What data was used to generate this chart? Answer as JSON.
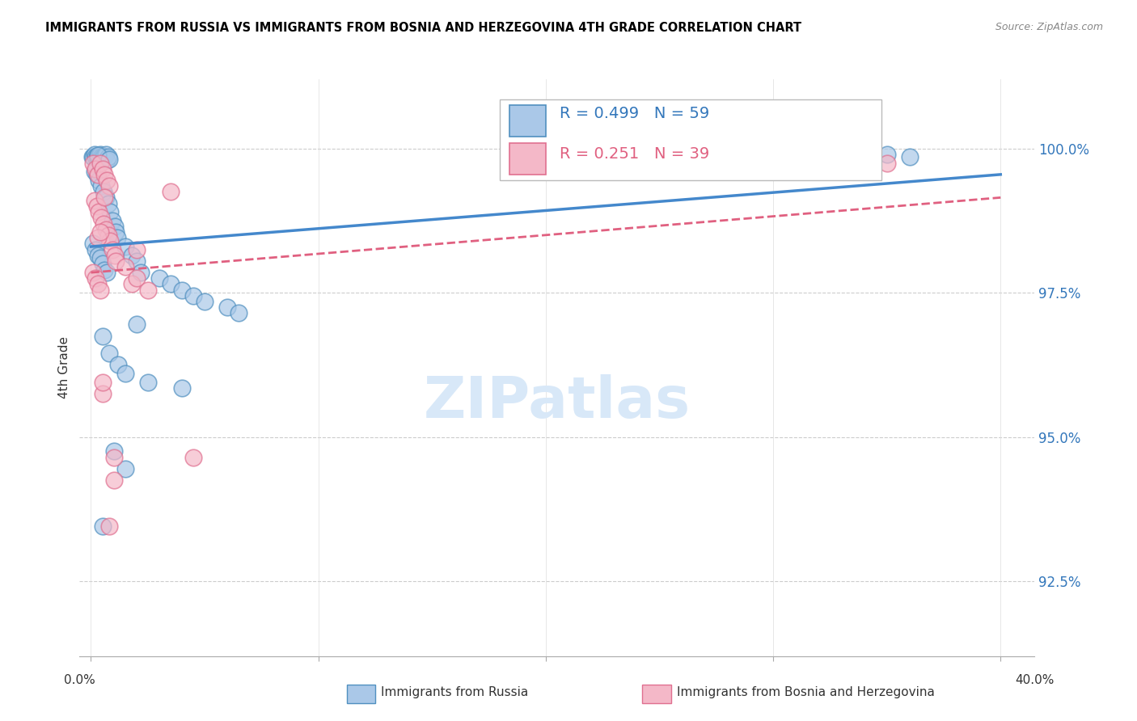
{
  "title": "IMMIGRANTS FROM RUSSIA VS IMMIGRANTS FROM BOSNIA AND HERZEGOVINA 4TH GRADE CORRELATION CHART",
  "source": "Source: ZipAtlas.com",
  "ylabel": "4th Grade",
  "ymin": 91.2,
  "ymax": 101.2,
  "xmin": -0.5,
  "xmax": 41.5,
  "legend_blue_label": "Immigrants from Russia",
  "legend_pink_label": "Immigrants from Bosnia and Herzegovina",
  "R_blue": 0.499,
  "N_blue": 59,
  "R_pink": 0.251,
  "N_pink": 39,
  "blue_fill": "#aac8e8",
  "pink_fill": "#f4b8c8",
  "blue_edge": "#5090c0",
  "pink_edge": "#e07090",
  "blue_line": "#4488cc",
  "pink_line": "#e06080",
  "background_color": "#ffffff",
  "watermark_text": "ZIPatlas",
  "watermark_color": "#d8e8f8",
  "blue_scatter": [
    [
      0.05,
      99.85
    ],
    [
      0.1,
      99.85
    ],
    [
      0.15,
      99.9
    ],
    [
      0.2,
      99.85
    ],
    [
      0.25,
      99.85
    ],
    [
      0.3,
      99.85
    ],
    [
      0.35,
      99.85
    ],
    [
      0.4,
      99.9
    ],
    [
      0.45,
      99.85
    ],
    [
      0.5,
      99.85
    ],
    [
      0.55,
      99.85
    ],
    [
      0.6,
      99.85
    ],
    [
      0.65,
      99.9
    ],
    [
      0.7,
      99.8
    ],
    [
      0.75,
      99.85
    ],
    [
      0.15,
      99.6
    ],
    [
      0.25,
      99.55
    ],
    [
      0.35,
      99.45
    ],
    [
      0.45,
      99.35
    ],
    [
      0.55,
      99.25
    ],
    [
      0.65,
      99.15
    ],
    [
      0.75,
      99.05
    ],
    [
      0.85,
      98.9
    ],
    [
      0.95,
      98.75
    ],
    [
      1.05,
      98.65
    ],
    [
      1.1,
      98.55
    ],
    [
      1.15,
      98.45
    ],
    [
      0.1,
      98.35
    ],
    [
      0.2,
      98.25
    ],
    [
      0.3,
      98.15
    ],
    [
      0.4,
      98.1
    ],
    [
      0.5,
      98.0
    ],
    [
      0.6,
      97.9
    ],
    [
      0.7,
      97.85
    ],
    [
      1.5,
      98.3
    ],
    [
      1.8,
      98.15
    ],
    [
      2.0,
      98.05
    ],
    [
      2.2,
      97.85
    ],
    [
      3.0,
      97.75
    ],
    [
      3.5,
      97.65
    ],
    [
      4.0,
      97.55
    ],
    [
      4.5,
      97.45
    ],
    [
      5.0,
      97.35
    ],
    [
      6.0,
      97.25
    ],
    [
      6.5,
      97.15
    ],
    [
      2.0,
      96.95
    ],
    [
      0.5,
      96.75
    ],
    [
      0.8,
      96.45
    ],
    [
      1.2,
      96.25
    ],
    [
      1.5,
      96.1
    ],
    [
      2.5,
      95.95
    ],
    [
      4.0,
      95.85
    ],
    [
      1.0,
      94.75
    ],
    [
      1.5,
      94.45
    ],
    [
      0.5,
      93.45
    ],
    [
      35.0,
      99.9
    ],
    [
      36.0,
      99.85
    ],
    [
      0.3,
      99.88
    ],
    [
      0.8,
      99.82
    ]
  ],
  "pink_scatter": [
    [
      0.1,
      99.75
    ],
    [
      0.2,
      99.65
    ],
    [
      0.3,
      99.55
    ],
    [
      0.4,
      99.75
    ],
    [
      0.5,
      99.65
    ],
    [
      0.6,
      99.55
    ],
    [
      0.7,
      99.45
    ],
    [
      0.8,
      99.35
    ],
    [
      0.15,
      99.1
    ],
    [
      0.25,
      99.0
    ],
    [
      0.35,
      98.9
    ],
    [
      0.45,
      98.8
    ],
    [
      0.55,
      98.7
    ],
    [
      0.65,
      98.6
    ],
    [
      0.75,
      98.5
    ],
    [
      0.85,
      98.4
    ],
    [
      0.95,
      98.25
    ],
    [
      1.05,
      98.15
    ],
    [
      1.1,
      98.05
    ],
    [
      1.5,
      97.95
    ],
    [
      0.1,
      97.85
    ],
    [
      0.2,
      97.75
    ],
    [
      0.3,
      97.65
    ],
    [
      0.4,
      97.55
    ],
    [
      1.8,
      97.65
    ],
    [
      2.0,
      97.75
    ],
    [
      2.5,
      97.55
    ],
    [
      3.5,
      99.25
    ],
    [
      1.0,
      94.65
    ],
    [
      1.0,
      94.25
    ],
    [
      4.5,
      94.65
    ],
    [
      0.8,
      93.45
    ],
    [
      0.5,
      95.75
    ],
    [
      0.5,
      95.95
    ],
    [
      2.0,
      98.25
    ],
    [
      35.0,
      99.75
    ],
    [
      0.3,
      98.45
    ],
    [
      0.4,
      98.55
    ],
    [
      0.6,
      99.15
    ]
  ],
  "blue_trendline": [
    [
      0.0,
      98.3
    ],
    [
      40.0,
      99.55
    ]
  ],
  "pink_trendline": [
    [
      0.0,
      97.85
    ],
    [
      40.0,
      99.15
    ]
  ],
  "yticks": [
    92.5,
    95.0,
    97.5,
    100.0
  ],
  "xticks": [
    0,
    10,
    20,
    30,
    40
  ]
}
